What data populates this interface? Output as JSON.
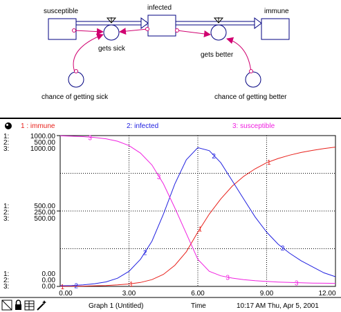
{
  "diagram": {
    "stocks": [
      "susceptible",
      "infected",
      "immune"
    ],
    "flows": [
      "gets sick",
      "gets better"
    ],
    "converters": [
      "chance of getting sick",
      "chance of getting better"
    ]
  },
  "colors": {
    "immune": "#e8201a",
    "infected": "#2020e0",
    "susceptible": "#f020e0",
    "connector": "#d00070",
    "stock_outline": "#000080"
  },
  "chart_data": {
    "type": "line",
    "x_label": "Time",
    "xlim": [
      0,
      12
    ],
    "x_ticks": [
      "0.00",
      "3.00",
      "6.00",
      "9.00",
      "12.00"
    ],
    "legend": [
      {
        "text": "1 : immune",
        "color": "#e8201a"
      },
      {
        "text": "2: infected",
        "color": "#2020e0"
      },
      {
        "text": "3: susceptible",
        "color": "#f020e0"
      }
    ],
    "axis_labels": {
      "top": [
        {
          "prefix": "1:",
          "value": "1000.00"
        },
        {
          "prefix": "2:",
          "value": "500.00"
        },
        {
          "prefix": "3:",
          "value": "1000.00"
        }
      ],
      "mid": [
        {
          "prefix": "1:",
          "value": "500.00"
        },
        {
          "prefix": "2:",
          "value": "250.00"
        },
        {
          "prefix": "3:",
          "value": "500.00"
        }
      ],
      "bottom": [
        {
          "prefix": "1:",
          "value": "0.00"
        },
        {
          "prefix": "2:",
          "value": "0.00"
        },
        {
          "prefix": "3:",
          "value": "0.00"
        }
      ]
    },
    "series": [
      {
        "id": "1",
        "name": "immune",
        "scale_max": 1000,
        "color": "#e8201a",
        "x": [
          0,
          0.5,
          1,
          1.5,
          2,
          2.5,
          3,
          3.5,
          4,
          4.5,
          5,
          5.5,
          6,
          6.5,
          7,
          7.5,
          8,
          8.5,
          9,
          9.5,
          10,
          10.5,
          11,
          11.5,
          12
        ],
        "y": [
          0,
          1,
          2,
          4,
          6,
          10,
          16,
          26,
          45,
          80,
          140,
          230,
          360,
          480,
          580,
          665,
          730,
          780,
          820,
          848,
          870,
          888,
          902,
          914,
          924
        ],
        "marker_x": [
          0.1,
          3.1,
          6.1,
          9.1
        ]
      },
      {
        "id": "2",
        "name": "infected",
        "scale_max": 500,
        "color": "#2020e0",
        "x": [
          0,
          0.5,
          1,
          1.5,
          2,
          2.5,
          3,
          3.5,
          4,
          4.5,
          5,
          5.5,
          6,
          6.5,
          7,
          7.5,
          8,
          8.5,
          9,
          9.5,
          10,
          10.5,
          11,
          11.5,
          12
        ],
        "y": [
          2,
          3,
          5,
          9,
          15,
          27,
          50,
          90,
          150,
          240,
          340,
          420,
          460,
          450,
          410,
          350,
          290,
          230,
          180,
          140,
          110,
          85,
          65,
          45,
          32
        ],
        "marker_x": [
          0.7,
          3.7,
          6.7,
          9.7
        ]
      },
      {
        "id": "3",
        "name": "susceptible",
        "scale_max": 1000,
        "color": "#f020e0",
        "x": [
          0,
          0.5,
          1,
          1.5,
          2,
          2.5,
          3,
          3.5,
          4,
          4.5,
          5,
          5.5,
          6,
          6.5,
          7,
          7.5,
          8,
          8.5,
          9,
          9.5,
          10,
          10.5,
          11,
          11.5,
          12
        ],
        "y": [
          998,
          996,
          993,
          987,
          979,
          963,
          934,
          884,
          805,
          680,
          520,
          350,
          180,
          100,
          70,
          55,
          45,
          38,
          33,
          29,
          26,
          24,
          22,
          21,
          20
        ],
        "marker_x": [
          1.3,
          4.3,
          7.3,
          10.3
        ]
      }
    ]
  },
  "footer": {
    "graph_title": "Graph 1 (Untitled)",
    "axis_name": "Time",
    "timestamp": "10:17 AM  Thu, Apr 5, 2001"
  }
}
